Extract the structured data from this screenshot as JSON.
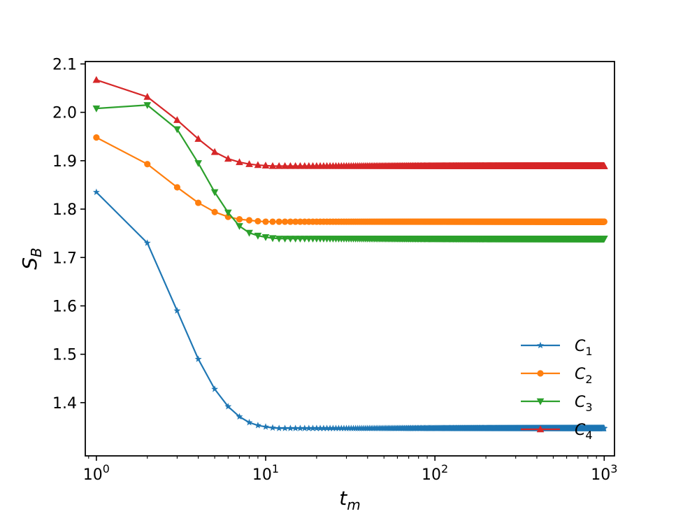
{
  "chart_data": {
    "type": "line",
    "title": "",
    "xlabel": "t_m",
    "ylabel": "S_B",
    "xscale": "log",
    "xlim": [
      0.86,
      1150
    ],
    "ylim": [
      1.29,
      2.105
    ],
    "grid": false,
    "legend_position": "lower-right",
    "x_ticks": [
      {
        "value": 1,
        "base": "10",
        "exp": "0"
      },
      {
        "value": 10,
        "base": "10",
        "exp": "1"
      },
      {
        "value": 100,
        "base": "10",
        "exp": "2"
      },
      {
        "value": 1000,
        "base": "10",
        "exp": "3"
      }
    ],
    "y_ticks": [
      {
        "value": 1.4,
        "label": "1.4"
      },
      {
        "value": 1.5,
        "label": "1.5"
      },
      {
        "value": 1.6,
        "label": "1.6"
      },
      {
        "value": 1.7,
        "label": "1.7"
      },
      {
        "value": 1.8,
        "label": "1.8"
      },
      {
        "value": 1.9,
        "label": "1.9"
      },
      {
        "value": 2.0,
        "label": "2.0"
      },
      {
        "value": 2.1,
        "label": "2.1"
      }
    ],
    "x": {
      "start": 1,
      "end": 1000,
      "step": 1
    },
    "series": [
      {
        "name": "C1",
        "label_base": "C",
        "label_sub": "1",
        "color": "#1f77b4",
        "marker": "star",
        "head": [
          1.835,
          1.73,
          1.59,
          1.49,
          1.428,
          1.392,
          1.371,
          1.359,
          1.353,
          1.35,
          1.348,
          1.347
        ],
        "plateau": 1.347
      },
      {
        "name": "C2",
        "label_base": "C",
        "label_sub": "2",
        "color": "#ff7f0e",
        "marker": "circle",
        "head": [
          1.948,
          1.893,
          1.845,
          1.813,
          1.794,
          1.784,
          1.779,
          1.777,
          1.775,
          1.774,
          1.774
        ],
        "plateau": 1.774
      },
      {
        "name": "C3",
        "label_base": "C",
        "label_sub": "3",
        "color": "#2ca02c",
        "marker": "triangle-down",
        "head": [
          2.008,
          2.015,
          1.965,
          1.895,
          1.835,
          1.793,
          1.765,
          1.751,
          1.745,
          1.742,
          1.74,
          1.739
        ],
        "plateau": 1.739
      },
      {
        "name": "C4",
        "label_base": "C",
        "label_sub": "4",
        "color": "#d62728",
        "marker": "triangle-up",
        "head": [
          2.067,
          2.032,
          1.984,
          1.945,
          1.918,
          1.904,
          1.897,
          1.893,
          1.891,
          1.89,
          1.889
        ],
        "plateau": 1.889
      }
    ]
  }
}
